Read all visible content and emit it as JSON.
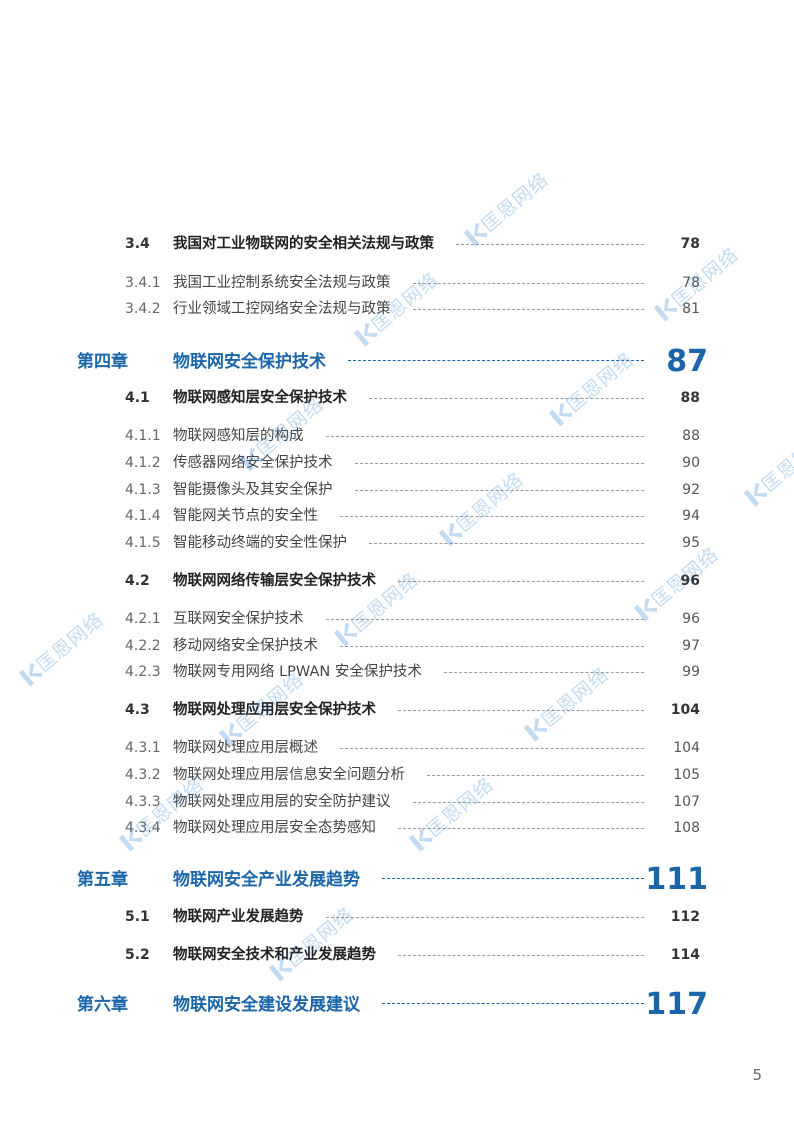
{
  "toc": [
    {
      "level": "section",
      "number": "3.4",
      "title": "我国对工业物联网的安全相关法规与政策",
      "page": "78"
    },
    {
      "level": "sub",
      "number": "3.4.1",
      "title": "我国工业控制系统安全法规与政策",
      "page": "78"
    },
    {
      "level": "sub",
      "number": "3.4.2",
      "title": "行业领域工控网络安全法规与政策",
      "page": "81"
    },
    {
      "level": "chapter",
      "number": "第四章",
      "title": "物联网安全保护技术",
      "page": "87"
    },
    {
      "level": "section",
      "number": "4.1",
      "title": "物联网感知层安全保护技术",
      "page": "88"
    },
    {
      "level": "sub",
      "number": "4.1.1",
      "title": "物联网感知层的构成",
      "page": "88"
    },
    {
      "level": "sub",
      "number": "4.1.2",
      "title": "传感器网络安全保护技术",
      "page": "90"
    },
    {
      "level": "sub",
      "number": "4.1.3",
      "title": "智能摄像头及其安全保护",
      "page": "92"
    },
    {
      "level": "sub",
      "number": "4.1.4",
      "title": "智能网关节点的安全性",
      "page": "94"
    },
    {
      "level": "sub",
      "number": "4.1.5",
      "title": "智能移动终端的安全性保护",
      "page": "95"
    },
    {
      "level": "section",
      "number": "4.2",
      "title": "物联网网络传输层安全保护技术",
      "page": "96"
    },
    {
      "level": "sub",
      "number": "4.2.1",
      "title": "互联网安全保护技术",
      "page": "96"
    },
    {
      "level": "sub",
      "number": "4.2.2",
      "title": "移动网络安全保护技术",
      "page": "97"
    },
    {
      "level": "sub",
      "number": "4.2.3",
      "title": "物联网专用网络 LPWAN 安全保护技术",
      "page": "99"
    },
    {
      "level": "section",
      "number": "4.3",
      "title": "物联网处理应用层安全保护技术",
      "page": "104"
    },
    {
      "level": "sub",
      "number": "4.3.1",
      "title": "物联网处理应用层概述",
      "page": "104"
    },
    {
      "level": "sub",
      "number": "4.3.2",
      "title": "物联网处理应用层信息安全问题分析",
      "page": "105"
    },
    {
      "level": "sub",
      "number": "4.3.3",
      "title": "物联网处理应用层的安全防护建议",
      "page": "107"
    },
    {
      "level": "sub",
      "number": "4.3.4",
      "title": "物联网处理应用层安全态势感知",
      "page": "108"
    },
    {
      "level": "chapter",
      "number": "第五章",
      "title": "物联网安全产业发展趋势",
      "page": "111"
    },
    {
      "level": "section",
      "number": "5.1",
      "title": "物联网产业发展趋势",
      "page": "112"
    },
    {
      "level": "section",
      "number": "5.2",
      "title": "物联网安全技术和产业发展趋势",
      "page": "114"
    },
    {
      "level": "chapter",
      "number": "第六章",
      "title": "物联网安全建设发展建议",
      "page": "117"
    }
  ],
  "page_number": "5",
  "watermark": {
    "text": "匡恩网络",
    "icon": "kuangen-logo-icon"
  },
  "colors": {
    "accent": "#1b66a8",
    "watermark": "#2a7fd0",
    "text": "#333333"
  }
}
